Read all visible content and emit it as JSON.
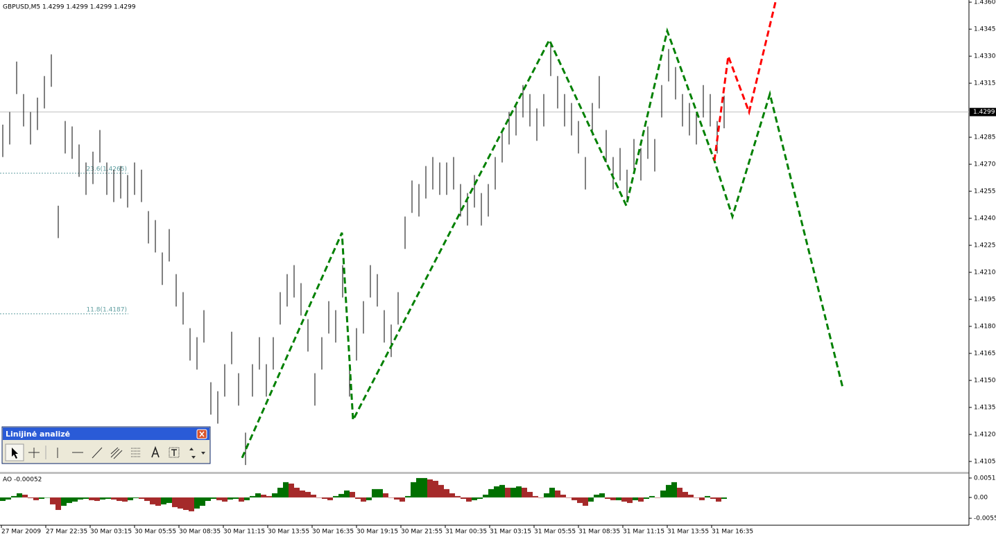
{
  "chart_data": {
    "type": "ohlc",
    "title": "GBPUSD,M5  1.4299 1.4299 1.4299 1.4299",
    "bar_color": "#000000",
    "ylim": [
      1.40996,
      1.43612
    ],
    "yticks": [
      {
        "value": 1.436,
        "label": "1.4360"
      },
      1.4345,
      {
        "value": 1.433,
        "label": "1.4330"
      },
      1.4315,
      1.4285,
      {
        "value": 1.427,
        "label": "1.4270"
      },
      1.4255,
      {
        "value": 1.424,
        "label": "1.4240"
      },
      1.4225,
      {
        "value": 1.421,
        "label": "1.4210"
      },
      1.4195,
      {
        "value": 1.418,
        "label": "1.4180"
      },
      1.4165,
      {
        "value": 1.415,
        "label": "1.4150"
      },
      1.4135,
      {
        "value": 1.412,
        "label": "1.4120"
      },
      1.4105
    ],
    "current_price": 1.4299,
    "time_labels": [
      "27 Mar 2009",
      "27 Mar 22:35",
      "30 Mar 03:15",
      "30 Mar 05:55",
      "30 Mar 08:35",
      "30 Mar 11:15",
      "30 Mar 13:55",
      "30 Mar 16:35",
      "30 Mar 19:15",
      "30 Mar 21:55",
      "31 Mar 00:35",
      "31 Mar 03:15",
      "31 Mar 05:55",
      "31 Mar 08:35",
      "31 Mar 11:15",
      "31 Mar 13:55",
      "31 Mar 16:35"
    ],
    "high": [
      1.4292,
      1.4299,
      1.4327,
      1.4309,
      1.4299,
      1.4307,
      1.4319,
      1.4331,
      1.4247,
      1.4294,
      1.4291,
      1.4281,
      1.4271,
      1.4277,
      1.4289,
      1.4271,
      1.4267,
      1.4269,
      1.4264,
      1.4271,
      1.4267,
      1.4244,
      1.4239,
      1.4221,
      1.4234,
      1.4209,
      1.4199,
      1.4179,
      1.4174,
      1.4189,
      1.4149,
      1.4144,
      1.4159,
      1.4177,
      1.4154,
      1.4121,
      1.4159,
      1.4174,
      1.4159,
      1.4174,
      1.4199,
      1.4209,
      1.4214,
      1.4204,
      1.4184,
      1.4154,
      1.4174,
      1.4194,
      1.4189,
      1.4214,
      1.4159,
      1.4179,
      1.4194,
      1.4214,
      1.4209,
      1.4189,
      1.4181,
      1.4199,
      1.4241,
      1.4261,
      1.4259,
      1.4269,
      1.4274,
      1.4271,
      1.4271,
      1.4274,
      1.4259,
      1.4254,
      1.4264,
      1.4254,
      1.4259,
      1.4274,
      1.4289,
      1.4299,
      1.4304,
      1.4314,
      1.4309,
      1.4301,
      1.4309,
      1.4337,
      1.4319,
      1.4309,
      1.4304,
      1.4294,
      1.4274,
      1.4304,
      1.4319,
      1.4289,
      1.4274,
      1.4279,
      1.4267,
      1.4284,
      1.4279,
      1.4291,
      1.4284,
      1.4314,
      1.4334,
      1.4324,
      1.4309,
      1.4304,
      1.4299,
      1.4314,
      1.4309,
      1.4294,
      1.4308
    ],
    "low": [
      1.4274,
      1.4281,
      1.4309,
      1.4291,
      1.4281,
      1.4289,
      1.4301,
      1.4313,
      1.4229,
      1.4276,
      1.4273,
      1.4263,
      1.4253,
      1.4259,
      1.4271,
      1.4253,
      1.4249,
      1.4251,
      1.4246,
      1.4253,
      1.4249,
      1.4226,
      1.4221,
      1.4203,
      1.4216,
      1.4191,
      1.4181,
      1.4161,
      1.4156,
      1.4171,
      1.4131,
      1.4126,
      1.4141,
      1.4159,
      1.4136,
      1.4103,
      1.4141,
      1.4156,
      1.4141,
      1.4156,
      1.4181,
      1.4191,
      1.4196,
      1.4186,
      1.4166,
      1.4136,
      1.4156,
      1.4176,
      1.4171,
      1.4196,
      1.4141,
      1.4161,
      1.4176,
      1.4196,
      1.4191,
      1.4171,
      1.4163,
      1.4181,
      1.4223,
      1.4243,
      1.4241,
      1.4251,
      1.4256,
      1.4253,
      1.4253,
      1.4256,
      1.4241,
      1.4236,
      1.4246,
      1.4236,
      1.4241,
      1.4256,
      1.4271,
      1.4281,
      1.4286,
      1.4296,
      1.4291,
      1.4283,
      1.4291,
      1.4319,
      1.4301,
      1.4291,
      1.4286,
      1.4276,
      1.4256,
      1.4286,
      1.4301,
      1.4271,
      1.4256,
      1.4261,
      1.4249,
      1.4266,
      1.4261,
      1.4273,
      1.4266,
      1.4296,
      1.4316,
      1.4306,
      1.4291,
      1.4286,
      1.4281,
      1.4296,
      1.4291,
      1.4276,
      1.429
    ],
    "fib_levels": [
      {
        "label": "23.6(1.4265)",
        "value": 1.4265
      },
      {
        "label": "11.8(1.4187)",
        "value": 1.4187
      }
    ],
    "waves": [
      {
        "color": "#008000",
        "x": [
          174.5,
          246.5,
          254.5,
          396,
          451.5,
          481,
          515,
          528,
          555,
          607.5
        ],
        "values": [
          1.4107,
          1.4232,
          1.4128,
          1.4339,
          1.4247,
          1.4344,
          1.4272,
          1.4241,
          1.4309,
          1.4146
        ]
      },
      {
        "color": "#ff0000",
        "x": [
          515,
          525,
          540,
          559
        ],
        "values": [
          1.4272,
          1.433,
          1.4299,
          1.436
        ]
      }
    ],
    "indicator": {
      "type": "histogram",
      "title": "AO -0.00052",
      "up_color": "#007000",
      "down_color": "#a52a2a",
      "ylim": [
        -0.00733,
        0.0062
      ],
      "yticks": [
        0.00512,
        {
          "value": 0,
          "label": "0.00"
        },
        -0.0055
      ],
      "values": [
        -0.00092,
        -0.00055,
        0.00037,
        0.0011,
        0.00073,
        -0.00018,
        -0.00073,
        -0.00037,
        0,
        -0.00183,
        -0.0033,
        -0.0022,
        -0.00146,
        -0.0011,
        -0.00055,
        -0.00037,
        -0.00073,
        -0.00092,
        -0.00055,
        -0.00037,
        -0.00055,
        -0.00092,
        -0.0011,
        -0.00073,
        -0.00018,
        -0.00037,
        -0.00092,
        -0.00183,
        -0.0022,
        -0.00183,
        -0.00146,
        -0.00256,
        -0.00293,
        -0.0033,
        -0.00366,
        -0.00293,
        -0.0022,
        -0.00092,
        -0.00037,
        -0.00073,
        -0.0011,
        -0.00055,
        -0.00037,
        -0.0011,
        -0.00073,
        0.00037,
        0.0011,
        0.00073,
        0.00037,
        0.0011,
        0.00256,
        0.00403,
        0.00366,
        0.00256,
        0.00183,
        0.00146,
        0.00073,
        0,
        -0.00037,
        -0.00073,
        0.00037,
        0.00092,
        0.00183,
        0.00146,
        -0.00037,
        -0.0011,
        -0.00073,
        0.0022,
        0.0022,
        0.0011,
        0,
        -0.00055,
        -0.0011,
        0.00037,
        0.00403,
        0.00512,
        0.00512,
        0.00476,
        0.00439,
        0.0033,
        0.0022,
        0.0011,
        0.00037,
        -0.00037,
        -0.0011,
        -0.00073,
        -0.00037,
        0.00073,
        0.0022,
        0.00293,
        0.0033,
        0.00256,
        0.00256,
        0.00293,
        0.00256,
        0.00146,
        0.00037,
        0,
        0.0011,
        0.00256,
        0.00183,
        0.00073,
        0,
        -0.00073,
        -0.00146,
        -0.0022,
        -0.0011,
        0.00073,
        0.0011,
        -0.00037,
        -0.00073,
        -0.00073,
        -0.0011,
        -0.00146,
        -0.00073,
        -0.0011,
        -0.00037,
        0.00037,
        0,
        0.00183,
        0.0033,
        0.00403,
        0.00256,
        0.00146,
        0.00073,
        0,
        -0.00073,
        0.00037,
        -0.00037,
        -0.0011,
        -0.00037
      ]
    }
  },
  "toolbar": {
    "title": "Linijinė analizė"
  }
}
